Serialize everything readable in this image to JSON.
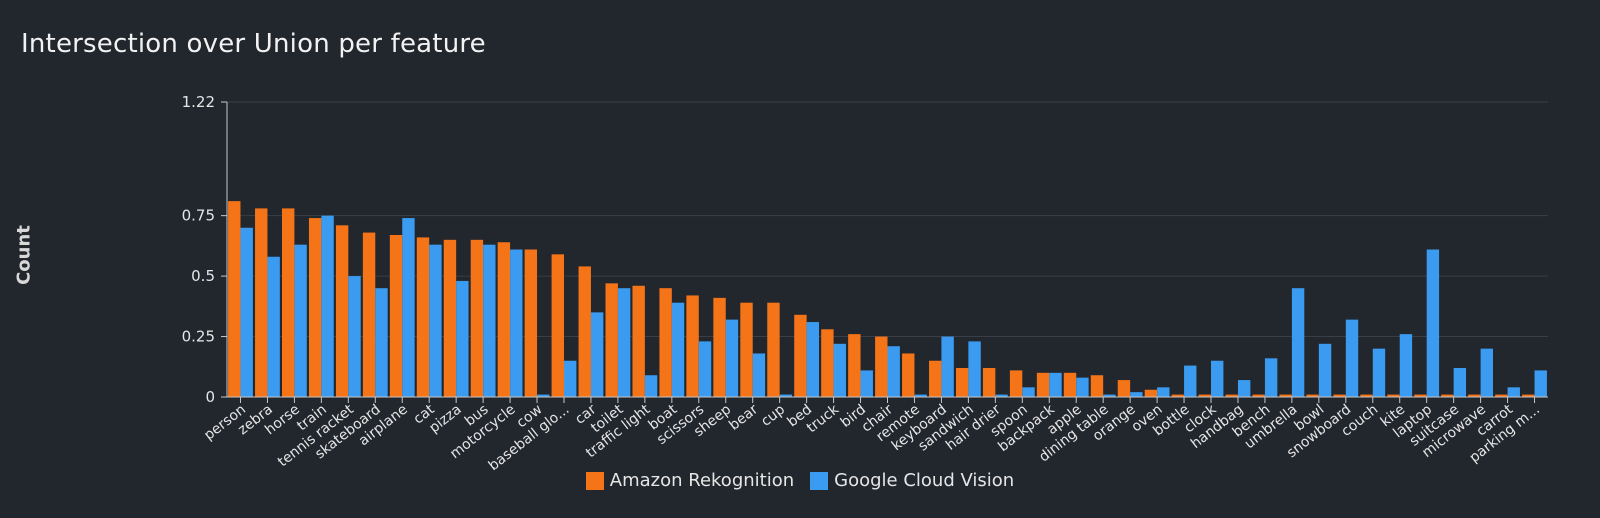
{
  "chart_data": {
    "type": "bar",
    "title": "Intersection over Union per feature",
    "ylabel": "Count",
    "xlabel": "",
    "ylim": [
      0,
      1.22
    ],
    "yticks": [
      0,
      0.25,
      0.5,
      0.75,
      1.22
    ],
    "ytick_labels": [
      "0",
      "0.25",
      "0.5",
      "0.75",
      "1.22"
    ],
    "grid": true,
    "legend_position": "bottom",
    "categories": [
      "person",
      "zebra",
      "horse",
      "train",
      "tennis racket",
      "skateboard",
      "airplane",
      "cat",
      "pizza",
      "bus",
      "motorcycle",
      "cow",
      "baseball glo...",
      "car",
      "toilet",
      "traffic light",
      "boat",
      "scissors",
      "sheep",
      "bear",
      "cup",
      "bed",
      "truck",
      "bird",
      "chair",
      "remote",
      "keyboard",
      "sandwich",
      "hair drier",
      "spoon",
      "backpack",
      "apple",
      "dining table",
      "orange",
      "oven",
      "bottle",
      "clock",
      "handbag",
      "bench",
      "umbrella",
      "bowl",
      "snowboard",
      "couch",
      "kite",
      "laptop",
      "suitcase",
      "microwave",
      "carrot",
      "parking m..."
    ],
    "series": [
      {
        "name": "Amazon Rekognition",
        "color": "#f57418",
        "values": [
          0.81,
          0.78,
          0.78,
          0.74,
          0.71,
          0.68,
          0.67,
          0.66,
          0.65,
          0.65,
          0.64,
          0.61,
          0.59,
          0.54,
          0.47,
          0.46,
          0.45,
          0.42,
          0.41,
          0.39,
          0.39,
          0.34,
          0.28,
          0.26,
          0.25,
          0.18,
          0.15,
          0.12,
          0.12,
          0.11,
          0.1,
          0.1,
          0.09,
          0.07,
          0.03,
          0.01,
          0.01,
          0.01,
          0.01,
          0.01,
          0.01,
          0.01,
          0.01,
          0.01,
          0.01,
          0.01,
          0.01,
          0.01,
          0.01
        ]
      },
      {
        "name": "Google Cloud Vision",
        "color": "#3a9bf0",
        "values": [
          0.7,
          0.58,
          0.63,
          0.75,
          0.5,
          0.45,
          0.74,
          0.63,
          0.48,
          0.63,
          0.61,
          0.01,
          0.15,
          0.35,
          0.45,
          0.09,
          0.39,
          0.23,
          0.32,
          0.18,
          0.01,
          0.31,
          0.22,
          0.11,
          0.21,
          0.01,
          0.25,
          0.23,
          0.01,
          0.04,
          0.1,
          0.08,
          0.01,
          0.02,
          0.04,
          0.13,
          0.15,
          0.07,
          0.16,
          0.45,
          0.22,
          0.32,
          0.2,
          0.26,
          0.61,
          0.12,
          0.2,
          0.04,
          0.11
        ]
      }
    ]
  },
  "colors": {
    "background": "#22262d",
    "grid": "#3a3f47",
    "axis": "#c8c8c8",
    "text": "#e6e6e6"
  }
}
